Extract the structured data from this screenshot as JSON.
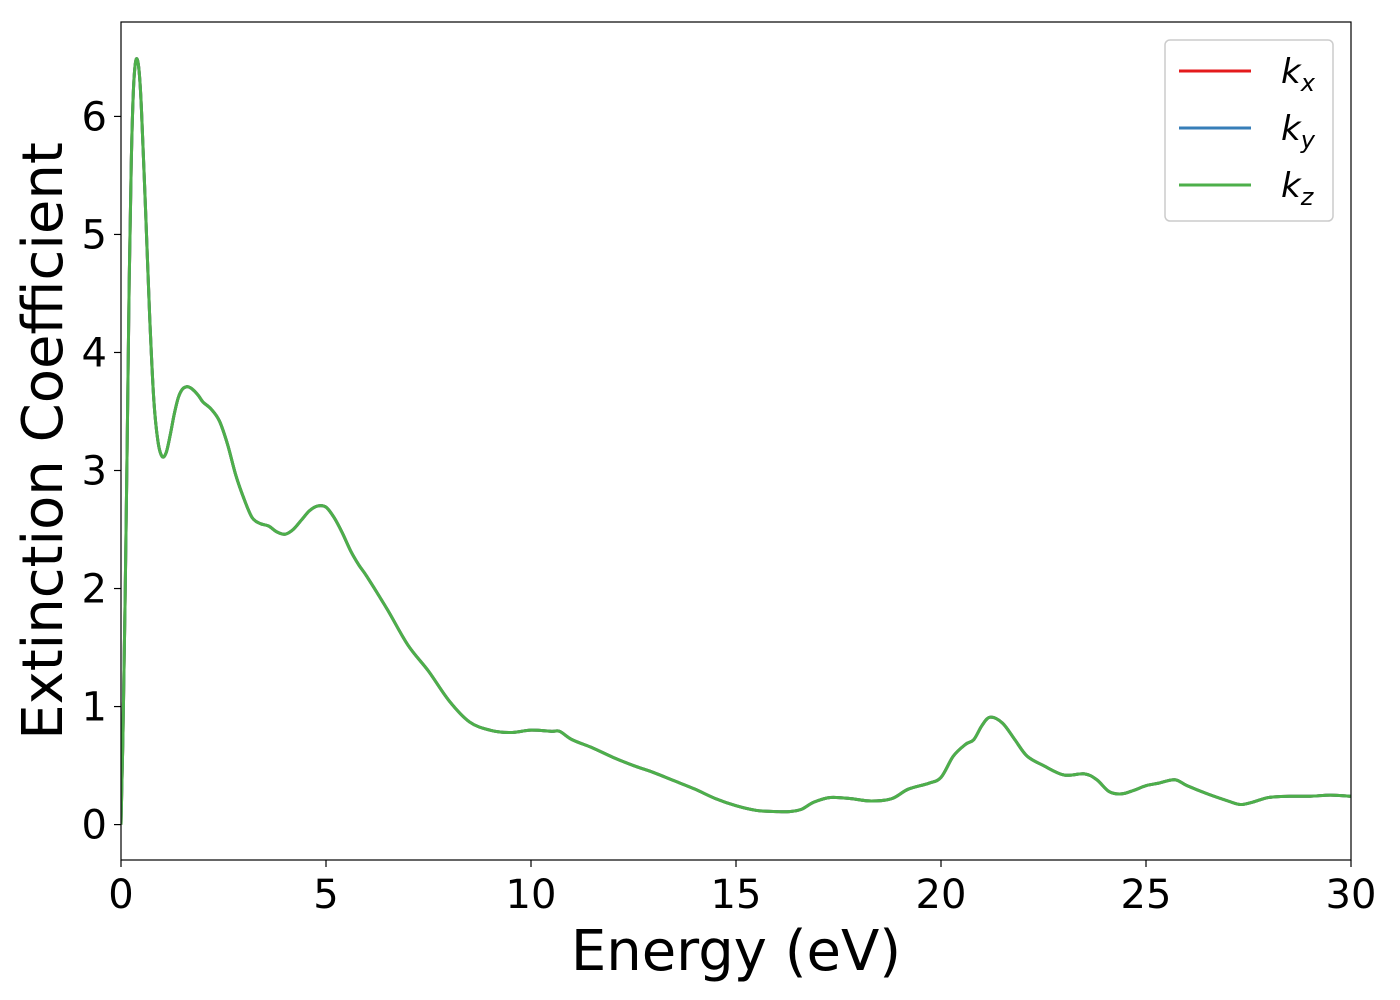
{
  "chart_data": {
    "type": "line",
    "title": "",
    "xlabel": "Energy (eV)",
    "ylabel": "Extinction Coefficient",
    "xlim": [
      0,
      30
    ],
    "ylim": [
      -0.3,
      6.8
    ],
    "xticks": [
      0,
      5,
      10,
      15,
      20,
      25,
      30
    ],
    "xtick_labels": [
      "0",
      "5",
      "10",
      "15",
      "20",
      "25",
      "30"
    ],
    "yticks": [
      0,
      1,
      2,
      3,
      4,
      5,
      6
    ],
    "ytick_labels": [
      "0",
      "1",
      "2",
      "3",
      "4",
      "5",
      "6"
    ],
    "grid": false,
    "legend_position": "top-right",
    "x": [
      0.0,
      0.05,
      0.1,
      0.15,
      0.2,
      0.25,
      0.3,
      0.35,
      0.4,
      0.45,
      0.5,
      0.6,
      0.7,
      0.8,
      0.9,
      1.0,
      1.1,
      1.2,
      1.3,
      1.4,
      1.5,
      1.6,
      1.7,
      1.8,
      1.9,
      2.0,
      2.2,
      2.4,
      2.6,
      2.8,
      3.0,
      3.2,
      3.4,
      3.6,
      3.8,
      4.0,
      4.2,
      4.4,
      4.6,
      4.8,
      5.0,
      5.2,
      5.4,
      5.6,
      5.8,
      6.0,
      6.5,
      7.0,
      7.5,
      8.0,
      8.5,
      9.0,
      9.5,
      10.0,
      10.5,
      10.7,
      11.0,
      11.5,
      12.0,
      12.5,
      13.0,
      13.5,
      14.0,
      14.5,
      15.0,
      15.5,
      16.0,
      16.3,
      16.6,
      16.9,
      17.3,
      17.8,
      18.3,
      18.8,
      19.2,
      19.7,
      20.0,
      20.3,
      20.6,
      20.8,
      21.0,
      21.2,
      21.5,
      21.8,
      22.1,
      22.5,
      23.0,
      23.5,
      23.8,
      24.1,
      24.4,
      24.7,
      25.0,
      25.3,
      25.7,
      26.0,
      26.5,
      27.0,
      27.3,
      27.6,
      28.0,
      28.5,
      29.0,
      29.5,
      30.0
    ],
    "series": [
      {
        "name": "k_x",
        "color": "#e41a1c",
        "values": [
          0.0,
          0.8,
          1.9,
          3.2,
          4.6,
          5.6,
          6.2,
          6.45,
          6.48,
          6.35,
          6.05,
          5.2,
          4.3,
          3.6,
          3.25,
          3.12,
          3.15,
          3.3,
          3.48,
          3.62,
          3.69,
          3.71,
          3.7,
          3.67,
          3.63,
          3.58,
          3.52,
          3.42,
          3.22,
          2.96,
          2.76,
          2.6,
          2.55,
          2.53,
          2.48,
          2.46,
          2.5,
          2.58,
          2.66,
          2.7,
          2.69,
          2.6,
          2.47,
          2.32,
          2.2,
          2.1,
          1.82,
          1.52,
          1.3,
          1.05,
          0.87,
          0.8,
          0.78,
          0.8,
          0.79,
          0.79,
          0.72,
          0.65,
          0.57,
          0.5,
          0.44,
          0.37,
          0.3,
          0.22,
          0.16,
          0.12,
          0.11,
          0.11,
          0.13,
          0.19,
          0.23,
          0.22,
          0.2,
          0.22,
          0.3,
          0.35,
          0.4,
          0.58,
          0.68,
          0.72,
          0.84,
          0.91,
          0.86,
          0.72,
          0.58,
          0.5,
          0.42,
          0.43,
          0.38,
          0.28,
          0.26,
          0.29,
          0.33,
          0.35,
          0.38,
          0.33,
          0.26,
          0.2,
          0.17,
          0.19,
          0.23,
          0.24,
          0.24,
          0.25,
          0.24
        ]
      },
      {
        "name": "k_y",
        "color": "#377eb8",
        "values": [
          0.0,
          0.8,
          1.9,
          3.2,
          4.6,
          5.6,
          6.2,
          6.45,
          6.48,
          6.35,
          6.05,
          5.2,
          4.3,
          3.6,
          3.25,
          3.12,
          3.15,
          3.3,
          3.48,
          3.62,
          3.69,
          3.71,
          3.7,
          3.67,
          3.63,
          3.58,
          3.52,
          3.42,
          3.22,
          2.96,
          2.76,
          2.6,
          2.55,
          2.53,
          2.48,
          2.46,
          2.5,
          2.58,
          2.66,
          2.7,
          2.69,
          2.6,
          2.47,
          2.32,
          2.2,
          2.1,
          1.82,
          1.52,
          1.3,
          1.05,
          0.87,
          0.8,
          0.78,
          0.8,
          0.79,
          0.79,
          0.72,
          0.65,
          0.57,
          0.5,
          0.44,
          0.37,
          0.3,
          0.22,
          0.16,
          0.12,
          0.11,
          0.11,
          0.13,
          0.19,
          0.23,
          0.22,
          0.2,
          0.22,
          0.3,
          0.35,
          0.4,
          0.58,
          0.68,
          0.72,
          0.84,
          0.91,
          0.86,
          0.72,
          0.58,
          0.5,
          0.42,
          0.43,
          0.38,
          0.28,
          0.26,
          0.29,
          0.33,
          0.35,
          0.38,
          0.33,
          0.26,
          0.2,
          0.17,
          0.19,
          0.23,
          0.24,
          0.24,
          0.25,
          0.24
        ]
      },
      {
        "name": "k_z",
        "color": "#4daf4a",
        "values": [
          0.0,
          0.8,
          1.9,
          3.2,
          4.6,
          5.6,
          6.2,
          6.45,
          6.48,
          6.35,
          6.05,
          5.2,
          4.3,
          3.6,
          3.25,
          3.12,
          3.15,
          3.3,
          3.48,
          3.62,
          3.69,
          3.71,
          3.7,
          3.67,
          3.63,
          3.58,
          3.52,
          3.42,
          3.22,
          2.96,
          2.76,
          2.6,
          2.55,
          2.53,
          2.48,
          2.46,
          2.5,
          2.58,
          2.66,
          2.7,
          2.69,
          2.6,
          2.47,
          2.32,
          2.2,
          2.1,
          1.82,
          1.52,
          1.3,
          1.05,
          0.87,
          0.8,
          0.78,
          0.8,
          0.79,
          0.79,
          0.72,
          0.65,
          0.57,
          0.5,
          0.44,
          0.37,
          0.3,
          0.22,
          0.16,
          0.12,
          0.11,
          0.11,
          0.13,
          0.19,
          0.23,
          0.22,
          0.2,
          0.22,
          0.3,
          0.35,
          0.4,
          0.58,
          0.68,
          0.72,
          0.84,
          0.91,
          0.86,
          0.72,
          0.58,
          0.5,
          0.42,
          0.43,
          0.38,
          0.28,
          0.26,
          0.29,
          0.33,
          0.35,
          0.38,
          0.33,
          0.26,
          0.2,
          0.17,
          0.19,
          0.23,
          0.24,
          0.24,
          0.25,
          0.24
        ]
      }
    ],
    "legend": [
      {
        "base": "k",
        "sub": "x",
        "color": "#e41a1c"
      },
      {
        "base": "k",
        "sub": "y",
        "color": "#377eb8"
      },
      {
        "base": "k",
        "sub": "z",
        "color": "#4daf4a"
      }
    ]
  }
}
